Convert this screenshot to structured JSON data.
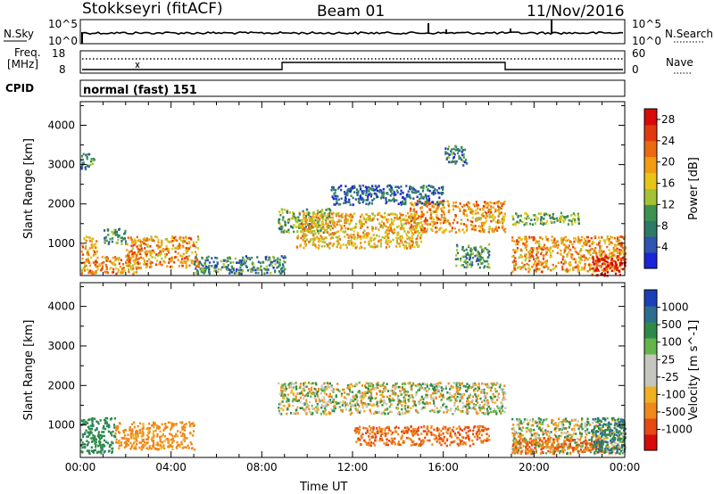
{
  "header": {
    "station": "Stokkseyri (fitACF)",
    "beam": "Beam 01",
    "date": "11/Nov/2016"
  },
  "noise_panel": {
    "left_label": "N.Sky",
    "left_ticks": [
      "10^5",
      "10^0"
    ],
    "right_label": "N.Search",
    "right_ticks": [
      "10^5",
      "10^0"
    ]
  },
  "freq_panel": {
    "left_label_1": "Freq.",
    "left_label_2": "[MHz]",
    "left_ticks": [
      "18",
      "8"
    ],
    "right_label": "Nave",
    "right_ticks": [
      "60",
      "0"
    ]
  },
  "cpid_panel": {
    "label": "CPID",
    "value": "normal (fast) 151"
  },
  "colors": {
    "power_scale": [
      "#1a24d8",
      "#2f53b0",
      "#2d7a66",
      "#3c9350",
      "#a4c236",
      "#e6c516",
      "#f39c12",
      "#ea6a10",
      "#e23a0e",
      "#d80a0a"
    ],
    "velocity_scale": [
      "#1a3fb8",
      "#2a6f8f",
      "#2e8a4a",
      "#63b548",
      "#c6c6c0",
      "#c6c6c0",
      "#f2b020",
      "#ef8a1a",
      "#e64a12",
      "#d80a0a"
    ]
  },
  "chart_data": [
    {
      "type": "heatmap",
      "title": "",
      "xlabel": "",
      "ylabel": "Slant Range [km]",
      "x_ticks": [
        "00:00",
        "04:00",
        "08:00",
        "12:00",
        "16:00",
        "20:00",
        "00:00"
      ],
      "xlim_hours": [
        0,
        24
      ],
      "y_ticks": [
        1000,
        2000,
        3000,
        4000
      ],
      "ylim": [
        180,
        4600
      ],
      "colorbar_label": "Power [dB]",
      "colorbar_ticks": [
        4,
        8,
        12,
        16,
        20,
        24,
        28
      ],
      "zlim": [
        0,
        30
      ],
      "echo_regions": [
        {
          "t": [
            0.0,
            0.7
          ],
          "r": [
            250,
            1200
          ],
          "db": 20
        },
        {
          "t": [
            0.0,
            0.6
          ],
          "r": [
            2900,
            3300
          ],
          "db": 8
        },
        {
          "t": [
            0.6,
            2.5
          ],
          "r": [
            250,
            700
          ],
          "db": 20
        },
        {
          "t": [
            1.0,
            2.0
          ],
          "r": [
            1000,
            1400
          ],
          "db": 9
        },
        {
          "t": [
            2.0,
            5.2
          ],
          "r": [
            400,
            1200
          ],
          "db": 20
        },
        {
          "t": [
            5.0,
            9.0
          ],
          "r": [
            250,
            700
          ],
          "db": 8
        },
        {
          "t": [
            8.7,
            11.0
          ],
          "r": [
            1300,
            1900
          ],
          "db": 11
        },
        {
          "t": [
            9.5,
            15.0
          ],
          "r": [
            900,
            1800
          ],
          "db": 18
        },
        {
          "t": [
            14.5,
            18.7
          ],
          "r": [
            1300,
            2100
          ],
          "db": 20
        },
        {
          "t": [
            11.0,
            16.0
          ],
          "r": [
            2000,
            2500
          ],
          "db": 6
        },
        {
          "t": [
            16.0,
            17.0
          ],
          "r": [
            3000,
            3500
          ],
          "db": 7
        },
        {
          "t": [
            16.5,
            18.0
          ],
          "r": [
            400,
            1000
          ],
          "db": 9
        },
        {
          "t": [
            19.0,
            22.0
          ],
          "r": [
            1500,
            1800
          ],
          "db": 12
        },
        {
          "t": [
            19.0,
            24.0
          ],
          "r": [
            300,
            1200
          ],
          "db": 20
        },
        {
          "t": [
            22.5,
            24.0
          ],
          "r": [
            200,
            700
          ],
          "db": 28
        }
      ]
    },
    {
      "type": "heatmap",
      "title": "",
      "xlabel": "Time UT",
      "ylabel": "Slant Range [km]",
      "x_ticks": [
        "00:00",
        "04:00",
        "08:00",
        "12:00",
        "16:00",
        "20:00",
        "00:00"
      ],
      "xlim_hours": [
        0,
        24
      ],
      "y_ticks": [
        1000,
        2000,
        3000,
        4000
      ],
      "ylim": [
        180,
        4600
      ],
      "colorbar_label": "Velocity [m s^-1]",
      "colorbar_ticks": [
        "1000",
        "500",
        "100",
        "25",
        "-25",
        "-100",
        "-500",
        "-1000"
      ],
      "echo_regions": [
        {
          "t": [
            0.0,
            1.5
          ],
          "r": [
            300,
            1200
          ],
          "v": 200
        },
        {
          "t": [
            1.5,
            5.0
          ],
          "r": [
            400,
            1100
          ],
          "v": -150
        },
        {
          "t": [
            8.7,
            18.7
          ],
          "r": [
            1300,
            2100
          ],
          "v": 0
        },
        {
          "t": [
            12.0,
            18.0
          ],
          "r": [
            500,
            1000
          ],
          "v": -300
        },
        {
          "t": [
            19.0,
            24.0
          ],
          "r": [
            300,
            1200
          ],
          "v": 0
        },
        {
          "t": [
            19.0,
            23.0
          ],
          "r": [
            300,
            700
          ],
          "v": -300
        },
        {
          "t": [
            22.5,
            24.0
          ],
          "r": [
            300,
            1200
          ],
          "v": 300
        }
      ]
    }
  ]
}
